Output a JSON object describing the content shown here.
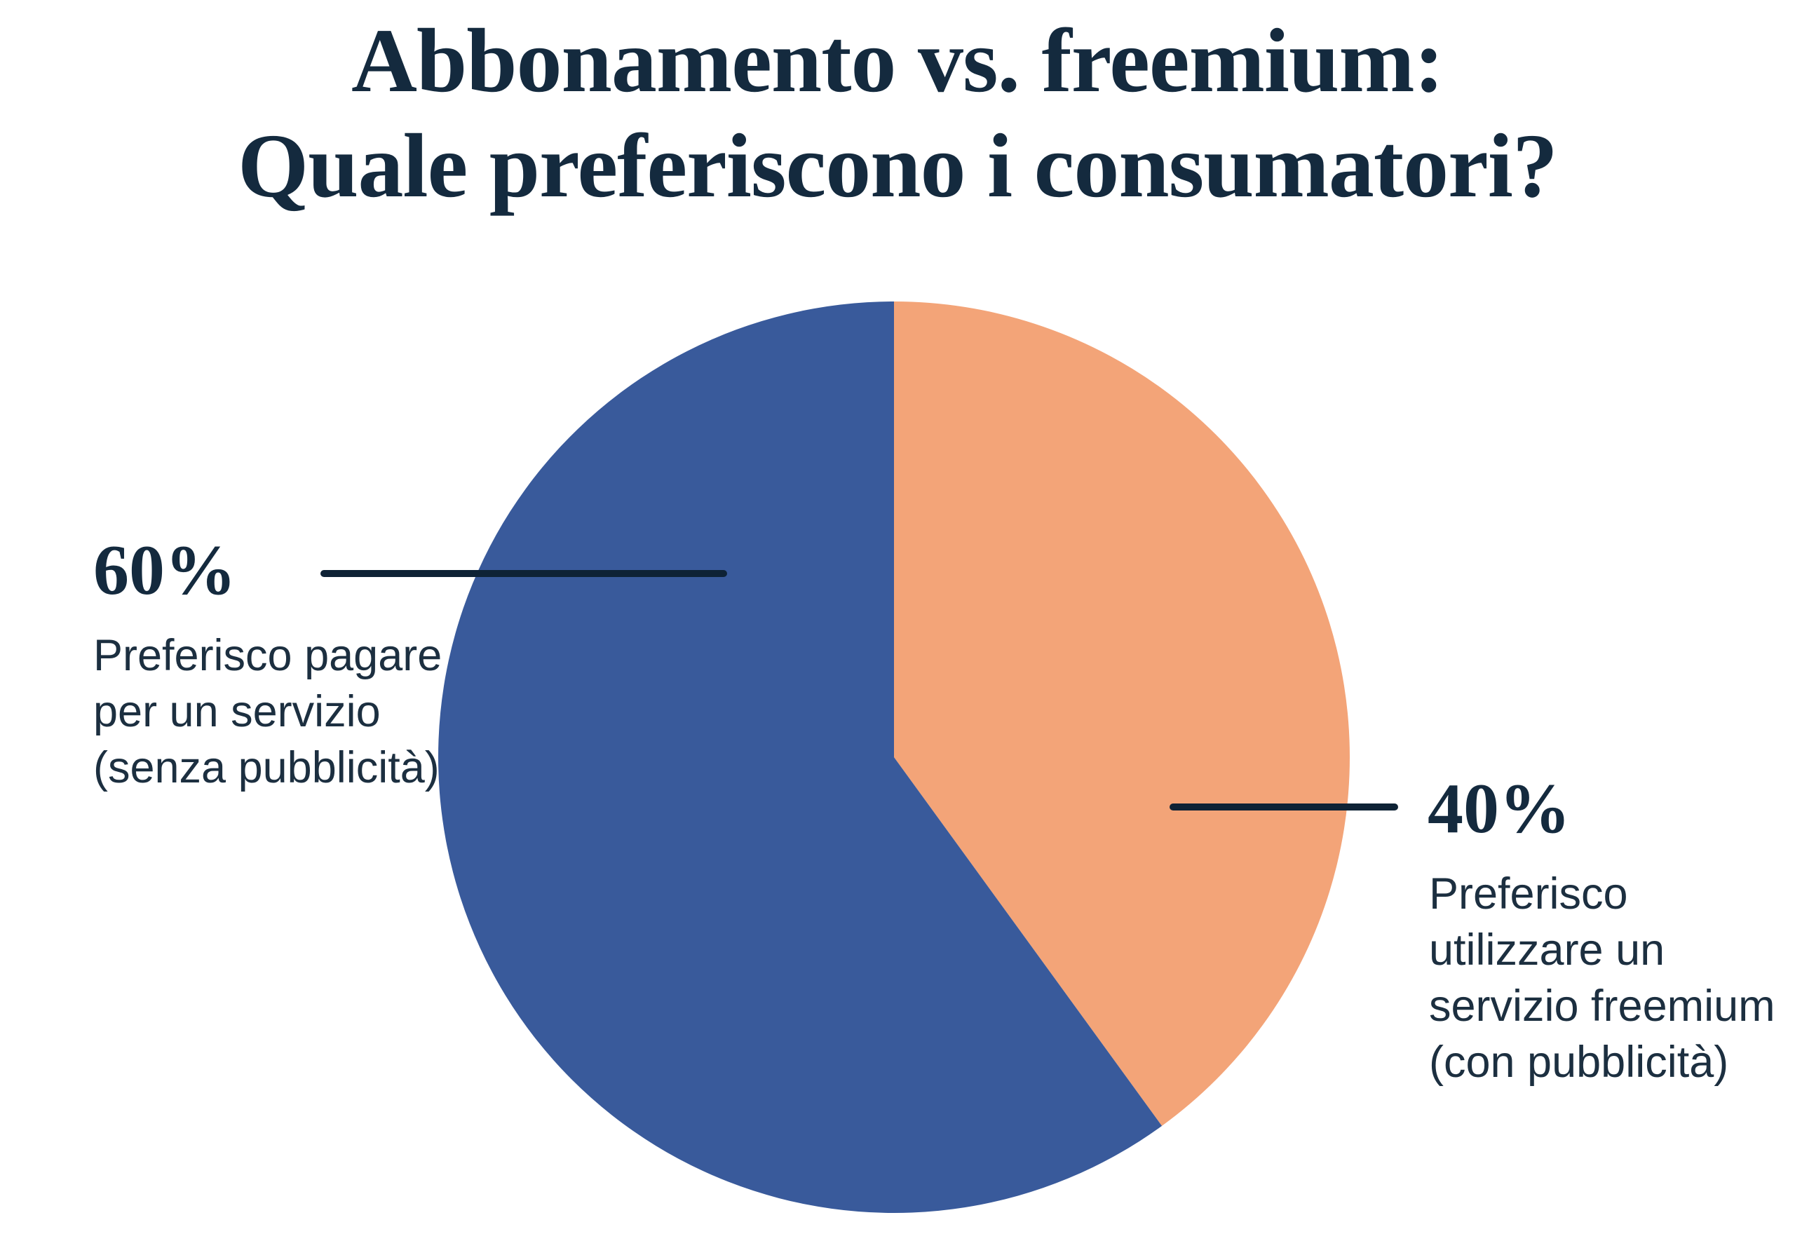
{
  "title": {
    "line1": "Abbonamento vs. freemium:",
    "line2": "Quale preferiscono i consumatori?"
  },
  "chart_data": {
    "type": "pie",
    "title": "Abbonamento vs. freemium: Quale preferiscono i consumatori?",
    "start_angle_deg": -90,
    "direction": "clockwise",
    "slices": [
      {
        "label": "Preferisco utilizzare un servizio freemium (con pubblicità)",
        "percent": 40,
        "color": "#F3A478",
        "label_side": "right"
      },
      {
        "label": "Preferisco pagare per un servizio (senza pubblicità)",
        "percent": 60,
        "color": "#395A9B",
        "label_side": "left"
      }
    ],
    "legend_position": "none",
    "annotations": [
      "60%",
      "40%"
    ]
  },
  "labels": {
    "left": {
      "percent": "60%",
      "lines": [
        "Preferisco pagare",
        "per un servizio",
        "(senza pubblicità)"
      ]
    },
    "right": {
      "percent": "40%",
      "lines": [
        "Preferisco",
        "utilizzare un",
        "servizio freemium",
        "(con pubblicità)"
      ]
    }
  },
  "colors": {
    "background": "#FFFFFF",
    "title_text": "#142A3E",
    "body_text": "#1C2F40",
    "callout_line": "#0E2235",
    "slice_blue": "#395A9B",
    "slice_orange": "#F3A478"
  }
}
